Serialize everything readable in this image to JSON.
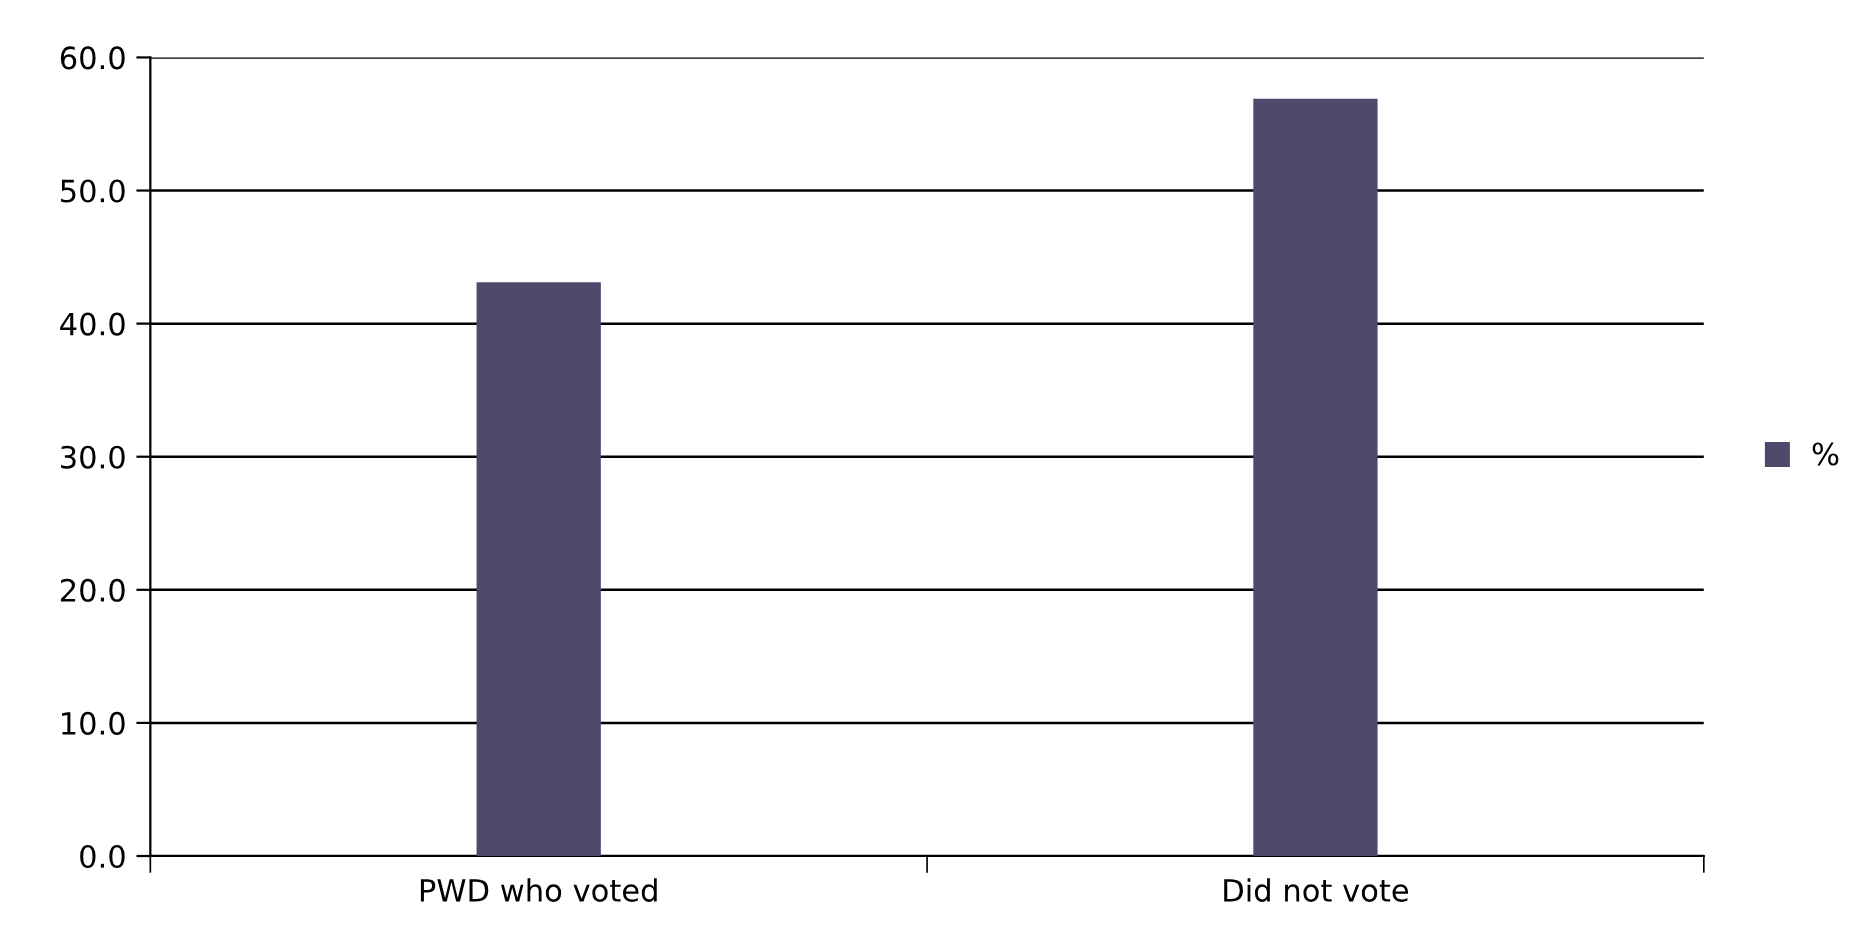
{
  "chart_data": {
    "type": "bar",
    "categories": [
      "PWD who voted",
      "Did not vote"
    ],
    "series": [
      {
        "name": "%",
        "color": "#4f4a6b",
        "values": [
          43.1,
          56.9
        ]
      }
    ],
    "ylim": [
      0,
      60
    ],
    "yticks": [
      {
        "value": 0,
        "label": "0.0"
      },
      {
        "value": 10,
        "label": "10.0"
      },
      {
        "value": 20,
        "label": "20.0"
      },
      {
        "value": 30,
        "label": "30.0"
      },
      {
        "value": 40,
        "label": "40.0"
      },
      {
        "value": 50,
        "label": "50.0"
      },
      {
        "value": 60,
        "label": "60.0"
      }
    ],
    "grid": "y",
    "legend": "right"
  }
}
